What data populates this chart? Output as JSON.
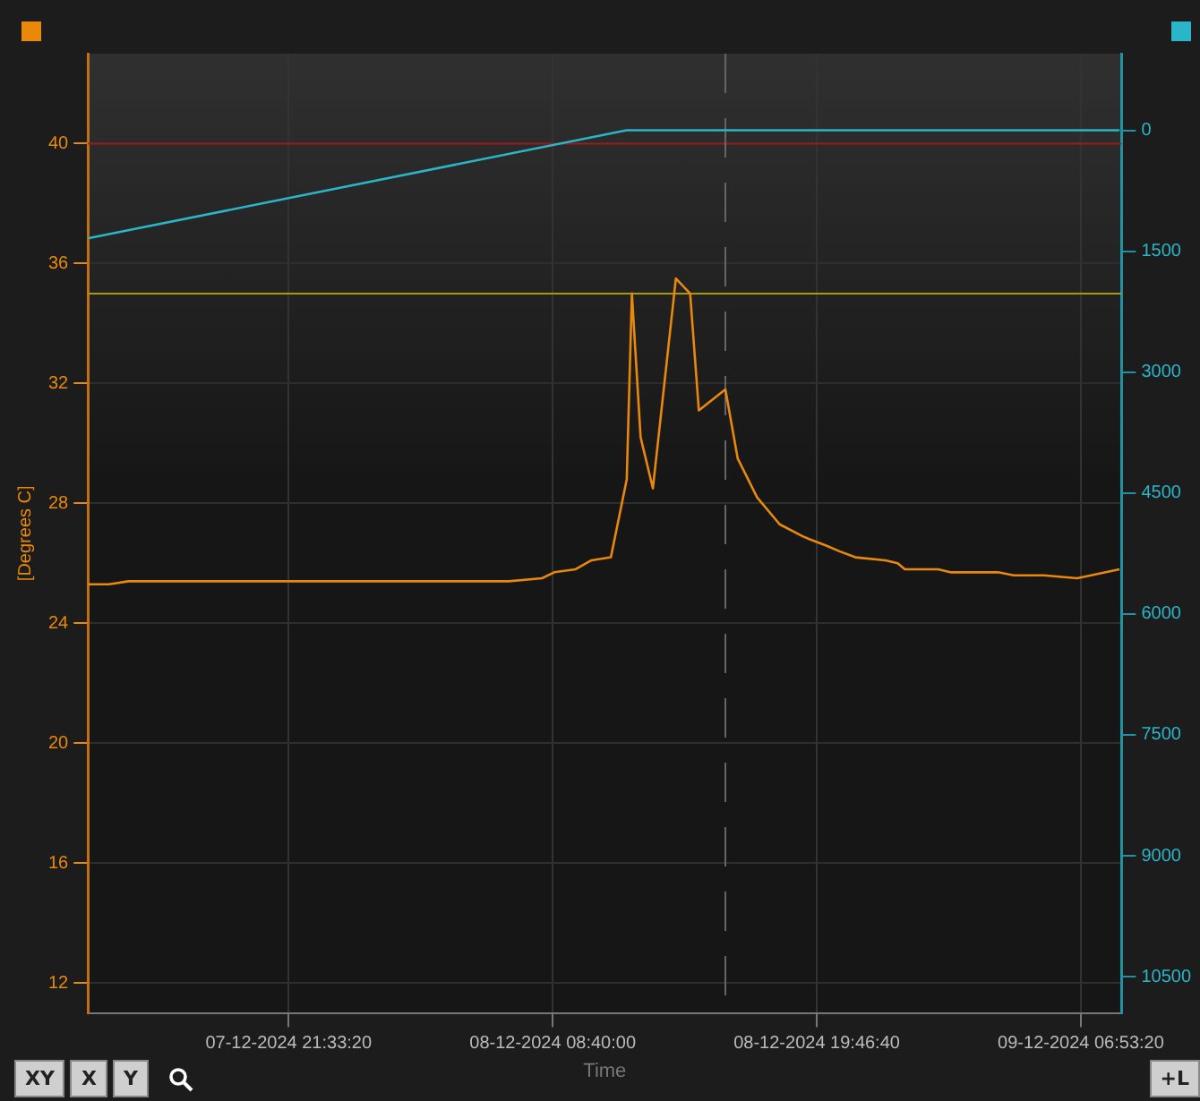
{
  "chart_data": {
    "type": "line",
    "xlabel": "Time",
    "ylabel": "[Degrees C]",
    "xlim": [
      "2024-12-07T13:07",
      "2024-12-09T08:36"
    ],
    "xticks": [
      {
        "value": "2024-12-07T21:33:20",
        "label": "07-12-2024 21:33:20"
      },
      {
        "value": "2024-12-08T08:40:00",
        "label": "08-12-2024 08:40:00"
      },
      {
        "value": "2024-12-08T19:46:40",
        "label": "08-12-2024 19:46:40"
      },
      {
        "value": "2024-12-09T06:53:20",
        "label": "09-12-2024 06:53:20"
      }
    ],
    "ylim": [
      11,
      43
    ],
    "yticks": [
      12,
      16,
      20,
      24,
      28,
      32,
      36,
      40
    ],
    "y2lim": [
      10950,
      -950
    ],
    "y2ticks": [
      0,
      1500,
      3000,
      4500,
      6000,
      7500,
      9000,
      10500
    ],
    "grid": true,
    "legend": false,
    "marker": "none",
    "line_style": "solid",
    "series": [
      {
        "color": "#e8890c",
        "x": [
          "2024-12-07T13:07",
          "2024-12-07T14:00",
          "2024-12-07T14:49",
          "2024-12-08T06:49",
          "2024-12-08T08:13",
          "2024-12-08T08:44",
          "2024-12-08T09:38",
          "2024-12-08T10:18",
          "2024-12-08T11:07",
          "2024-12-08T11:47",
          "2024-12-08T12:00",
          "2024-12-08T12:22",
          "2024-12-08T12:53",
          "2024-12-08T13:51",
          "2024-12-08T14:27",
          "2024-12-08T14:49",
          "2024-12-08T15:56",
          "2024-12-08T16:27",
          "2024-12-08T17:16",
          "2024-12-08T18:13",
          "2024-12-08T19:11",
          "2024-12-08T19:29",
          "2024-12-08T20:09",
          "2024-12-08T20:44",
          "2024-12-08T21:24",
          "2024-12-08T22:40",
          "2024-12-08T23:11",
          "2024-12-08T23:29",
          "2024-12-09T00:53",
          "2024-12-09T01:24",
          "2024-12-09T03:24",
          "2024-12-09T04:04",
          "2024-12-09T05:20",
          "2024-12-09T06:44",
          "2024-12-09T08:31"
        ],
        "values": [
          25.3,
          25.3,
          25.4,
          25.4,
          25.5,
          25.7,
          25.8,
          26.1,
          26.2,
          28.8,
          35.0,
          30.2,
          28.5,
          35.5,
          35.0,
          31.1,
          31.8,
          29.5,
          28.2,
          27.3,
          26.9,
          26.8,
          26.6,
          26.4,
          26.2,
          26.1,
          26.0,
          25.8,
          25.8,
          25.7,
          25.7,
          25.6,
          25.6,
          25.5,
          25.8
        ]
      },
      {
        "color": "#2bb5c8",
        "axis": "y2",
        "x": [
          "2024-12-07T13:07",
          "2024-12-08T11:47",
          "2024-12-09T08:31"
        ],
        "values": [
          1340,
          0,
          0
        ]
      }
    ],
    "ref_lines": [
      {
        "axis": "y",
        "value": 40,
        "color": "#9b1c1c"
      },
      {
        "axis": "y",
        "value": 35,
        "color": "#a89a00"
      },
      {
        "axis": "x",
        "value": "2024-12-08T15:56",
        "color": "#666666",
        "line_style": "dashed"
      }
    ],
    "annotations": [
      "XY",
      "X",
      "Y",
      "+L"
    ]
  }
}
